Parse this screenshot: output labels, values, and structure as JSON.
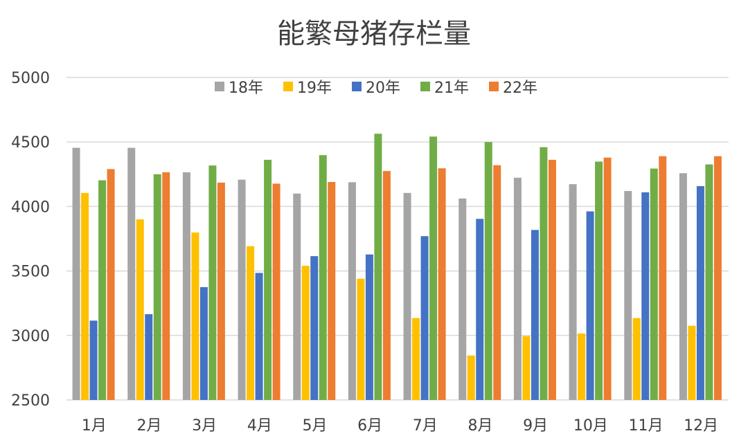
{
  "chart_data": {
    "type": "bar",
    "title": "能繁母猪存栏量",
    "categories": [
      "1月",
      "2月",
      "3月",
      "4月",
      "5月",
      "6月",
      "7月",
      "8月",
      "9月",
      "10月",
      "11月",
      "12月"
    ],
    "ylim": [
      2500,
      5000
    ],
    "yticks": [
      2500,
      3000,
      3500,
      4000,
      4500,
      5000
    ],
    "grid": true,
    "legend_position": "top",
    "series": [
      {
        "name": "18年",
        "color": "#a5a5a5",
        "values": [
          4455,
          4455,
          4265,
          4208,
          4100,
          4188,
          4105,
          4062,
          4223,
          4173,
          4120,
          4258
        ]
      },
      {
        "name": "19年",
        "color": "#ffc000",
        "values": [
          4105,
          3900,
          3798,
          3692,
          3540,
          3440,
          3135,
          2845,
          2995,
          3015,
          3135,
          3075
        ]
      },
      {
        "name": "20年",
        "color": "#4472c4",
        "values": [
          3115,
          3165,
          3375,
          3485,
          3615,
          3628,
          3770,
          3904,
          3818,
          3962,
          4110,
          4158
        ]
      },
      {
        "name": "21年",
        "color": "#70ad47",
        "values": [
          4203,
          4250,
          4318,
          4362,
          4398,
          4564,
          4542,
          4500,
          4460,
          4348,
          4294,
          4326
        ]
      },
      {
        "name": "22年",
        "color": "#ed7d31",
        "values": [
          4290,
          4265,
          4185,
          4177,
          4190,
          4275,
          4296,
          4320,
          4362,
          4379,
          4390,
          4390
        ]
      }
    ]
  }
}
